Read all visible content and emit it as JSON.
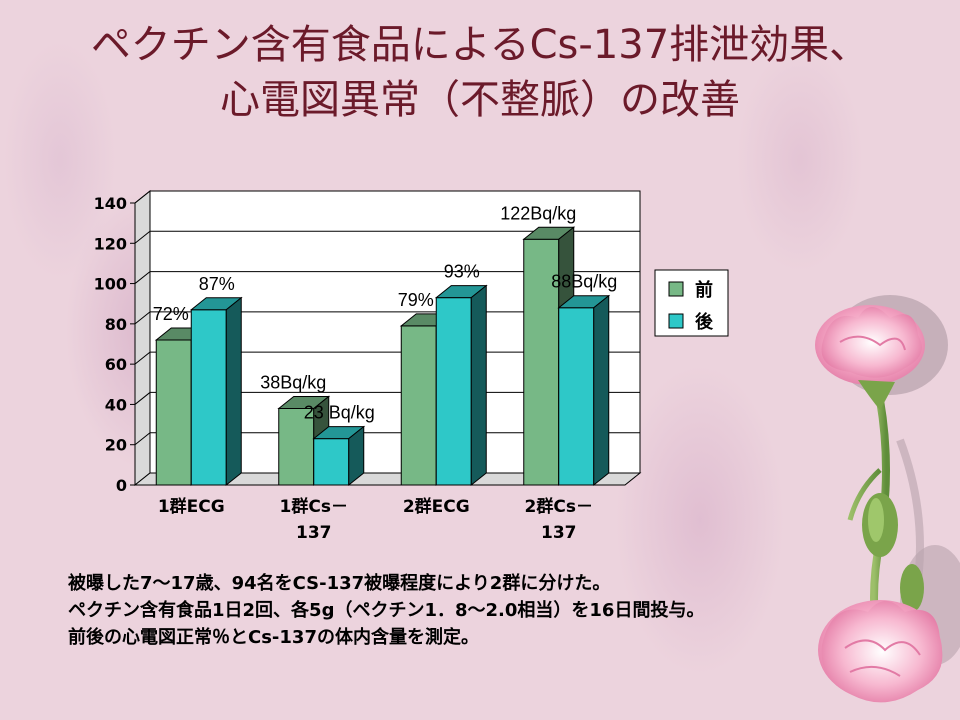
{
  "slide": {
    "title_line1": "ペクチン含有食品によるCs-137排泄効果、",
    "title_line2": "心電図異常（不整脈）の改善",
    "notes": [
      "被曝した7～17歳、94名をCS-137被曝程度により2群に分けた。",
      "ペクチン含有食品1日2回、各5g（ペクチン1．8～2.0相当）を16日間投与。",
      "前後の心電図正常％とCs-137の体内含量を測定。"
    ],
    "colors": {
      "background": "#ecd3dd",
      "title": "#6b1a2a"
    }
  },
  "chart_data": {
    "type": "bar",
    "style": "3d-clustered-column",
    "categories": [
      [
        "1群ECG"
      ],
      [
        "1群Cs－",
        "137"
      ],
      [
        "2群ECG"
      ],
      [
        "2群Cs－",
        "137"
      ]
    ],
    "series": [
      {
        "name": "前",
        "color": "#77b886",
        "values": [
          72,
          38,
          79,
          122
        ]
      },
      {
        "name": "後",
        "color": "#2ec8c8",
        "values": [
          87,
          23,
          93,
          88
        ]
      }
    ],
    "data_labels": [
      [
        "72%",
        "87%"
      ],
      [
        "38Bq/kg",
        "23 Bq/kg"
      ],
      [
        "79%",
        "93%"
      ],
      [
        "122Bq/kg",
        "88Bq/kg"
      ]
    ],
    "ylim": [
      0,
      140
    ],
    "yticks": [
      0,
      20,
      40,
      60,
      80,
      100,
      120,
      140
    ],
    "grid": true,
    "legend": "right",
    "xlabel": "",
    "ylabel": "",
    "title": ""
  }
}
